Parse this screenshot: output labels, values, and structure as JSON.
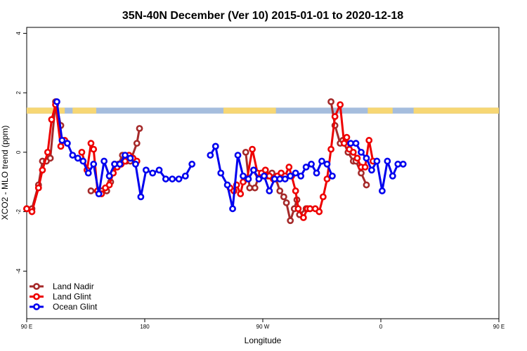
{
  "chart_data": {
    "type": "line",
    "title": "35N-40N December (Ver 10)   2015-01-01 to 2020-12-18",
    "xlabel": "Longitude",
    "ylabel": "XCO2 - MLO trend (ppm)",
    "xlim": [
      90,
      450
    ],
    "ylim": [
      -5.6,
      4.2
    ],
    "xticks": [
      {
        "value": 90,
        "label": "90 E"
      },
      {
        "value": 180,
        "label": "180"
      },
      {
        "value": 270,
        "label": "90 W"
      },
      {
        "value": 360,
        "label": "0"
      },
      {
        "value": 450,
        "label": "90 E"
      },
      {
        "value": 540,
        "label": "180"
      }
    ],
    "yticks": [
      -4,
      -2,
      0,
      2,
      4
    ],
    "land_mask_band": {
      "y_range": [
        1.3,
        1.5
      ],
      "land_color": "#F7D774",
      "ocean_color": "#A5BDDD",
      "land_segments": [
        [
          90,
          119
        ],
        [
          125,
          143
        ],
        [
          240,
          280
        ],
        [
          350,
          369
        ],
        [
          385,
          479
        ],
        [
          485,
          503
        ]
      ]
    },
    "series": [
      {
        "name": "Land Nadir",
        "color": "#A52A2A",
        "points": [
          [
            90,
            -1.9
          ],
          [
            94,
            -1.9
          ],
          [
            99,
            -1.1
          ],
          [
            102,
            -0.3
          ],
          [
            105,
            -0.3
          ],
          [
            108,
            -0.2
          ],
          [
            112,
            1.7
          ],
          [
            116,
            0.9
          ],
          [
            139,
            -1.3
          ],
          [
            147,
            -1.3
          ],
          [
            151,
            -1.3
          ],
          [
            154,
            -1.0
          ],
          [
            157,
            -0.4
          ],
          [
            160,
            -0.4
          ],
          [
            163,
            -0.1
          ],
          [
            166,
            -0.3
          ],
          [
            169,
            -0.3
          ],
          [
            174,
            0.3
          ],
          [
            176,
            0.8
          ],
          [
            257,
            0.0
          ],
          [
            260,
            -1.2
          ],
          [
            264,
            -1.2
          ],
          [
            267,
            -0.8
          ],
          [
            269,
            -0.8
          ],
          [
            272,
            -0.7
          ],
          [
            274,
            -0.8
          ],
          [
            277,
            -0.7
          ],
          [
            280,
            -0.9
          ],
          [
            283,
            -1.3
          ],
          [
            286,
            -1.5
          ],
          [
            288,
            -1.7
          ],
          [
            291,
            -2.3
          ],
          [
            294,
            -1.9
          ],
          [
            296,
            -1.6
          ],
          [
            298,
            -2.1
          ],
          [
            303,
            -1.9
          ],
          [
            306,
            -1.9
          ],
          [
            322,
            1.7
          ],
          [
            325,
            0.9
          ],
          [
            329,
            0.3
          ],
          [
            331,
            0.4
          ],
          [
            335,
            0.0
          ],
          [
            339,
            -0.3
          ],
          [
            341,
            -0.3
          ],
          [
            345,
            -0.7
          ],
          [
            349,
            -1.1
          ]
        ]
      },
      {
        "name": "Land Glint",
        "color": "#EE0000",
        "points": [
          [
            90,
            -1.9
          ],
          [
            94,
            -2.0
          ],
          [
            99,
            -1.2
          ],
          [
            102,
            -0.6
          ],
          [
            106,
            0.0
          ],
          [
            109,
            1.1
          ],
          [
            112,
            1.6
          ],
          [
            116,
            0.2
          ],
          [
            119,
            0.4
          ],
          [
            132,
            0.0
          ],
          [
            136,
            -0.6
          ],
          [
            139,
            0.3
          ],
          [
            141,
            0.1
          ],
          [
            144,
            -1.3
          ],
          [
            147,
            -1.4
          ],
          [
            150,
            -1.2
          ],
          [
            153,
            -1.1
          ],
          [
            156,
            -0.7
          ],
          [
            159,
            -0.5
          ],
          [
            162,
            -0.4
          ],
          [
            165,
            -0.3
          ],
          [
            168,
            -0.1
          ],
          [
            171,
            -0.2
          ],
          [
            174,
            -0.3
          ],
          [
            245,
            -1.2
          ],
          [
            248,
            -1.3
          ],
          [
            250,
            -1.1
          ],
          [
            253,
            -1.4
          ],
          [
            255,
            -1.0
          ],
          [
            258,
            -0.9
          ],
          [
            262,
            0.1
          ],
          [
            266,
            -0.7
          ],
          [
            269,
            -0.7
          ],
          [
            272,
            -0.6
          ],
          [
            275,
            -0.8
          ],
          [
            278,
            -0.9
          ],
          [
            281,
            -0.8
          ],
          [
            284,
            -0.7
          ],
          [
            287,
            -0.8
          ],
          [
            290,
            -0.5
          ],
          [
            292,
            -0.8
          ],
          [
            295,
            -1.3
          ],
          [
            297,
            -1.9
          ],
          [
            301,
            -2.2
          ],
          [
            304,
            -1.9
          ],
          [
            306,
            -1.9
          ],
          [
            310,
            -1.9
          ],
          [
            313,
            -2.0
          ],
          [
            316,
            -1.5
          ],
          [
            319,
            -0.9
          ],
          [
            322,
            0.1
          ],
          [
            325,
            1.2
          ],
          [
            329,
            1.6
          ],
          [
            332,
            0.3
          ],
          [
            334,
            0.5
          ],
          [
            336,
            0.1
          ],
          [
            339,
            0.0
          ],
          [
            342,
            -0.2
          ],
          [
            345,
            -0.5
          ],
          [
            348,
            -0.5
          ],
          [
            351,
            0.4
          ],
          [
            354,
            -0.3
          ]
        ]
      },
      {
        "name": "Ocean Glint",
        "color": "#0000EE",
        "points": [
          [
            113,
            1.7
          ],
          [
            117,
            0.4
          ],
          [
            121,
            0.3
          ],
          [
            125,
            -0.1
          ],
          [
            129,
            -0.2
          ],
          [
            133,
            -0.3
          ],
          [
            137,
            -0.7
          ],
          [
            141,
            -0.4
          ],
          [
            145,
            -1.4
          ],
          [
            149,
            -0.3
          ],
          [
            153,
            -0.8
          ],
          [
            157,
            -0.4
          ],
          [
            161,
            -0.4
          ],
          [
            165,
            -0.1
          ],
          [
            169,
            -0.2
          ],
          [
            173,
            -0.4
          ],
          [
            177,
            -1.5
          ],
          [
            181,
            -0.6
          ],
          [
            186,
            -0.7
          ],
          [
            191,
            -0.6
          ],
          [
            196,
            -0.9
          ],
          [
            201,
            -0.9
          ],
          [
            206,
            -0.9
          ],
          [
            211,
            -0.8
          ],
          [
            216,
            -0.4
          ],
          [
            230,
            -0.1
          ],
          [
            234,
            0.2
          ],
          [
            238,
            -0.7
          ],
          [
            243,
            -1.1
          ],
          [
            247,
            -1.9
          ],
          [
            251,
            -0.1
          ],
          [
            255,
            -0.8
          ],
          [
            259,
            -0.9
          ],
          [
            263,
            -0.6
          ],
          [
            267,
            -0.9
          ],
          [
            271,
            -0.8
          ],
          [
            275,
            -1.3
          ],
          [
            279,
            -0.9
          ],
          [
            283,
            -0.9
          ],
          [
            287,
            -0.9
          ],
          [
            291,
            -0.8
          ],
          [
            295,
            -0.7
          ],
          [
            299,
            -0.8
          ],
          [
            303,
            -0.5
          ],
          [
            307,
            -0.4
          ],
          [
            311,
            -0.7
          ],
          [
            315,
            -0.3
          ],
          [
            319,
            -0.4
          ],
          [
            323,
            -0.8
          ],
          [
            337,
            0.3
          ],
          [
            341,
            0.3
          ],
          [
            345,
            0.0
          ],
          [
            349,
            -0.2
          ],
          [
            353,
            -0.6
          ],
          [
            357,
            -0.3
          ],
          [
            361,
            -1.3
          ],
          [
            365,
            -0.3
          ],
          [
            369,
            -0.8
          ],
          [
            373,
            -0.4
          ],
          [
            377,
            -0.4
          ]
        ]
      }
    ],
    "legend": {
      "position": "bottom-left",
      "items": [
        "Land Nadir",
        "Land Glint",
        "Ocean Glint"
      ]
    }
  }
}
